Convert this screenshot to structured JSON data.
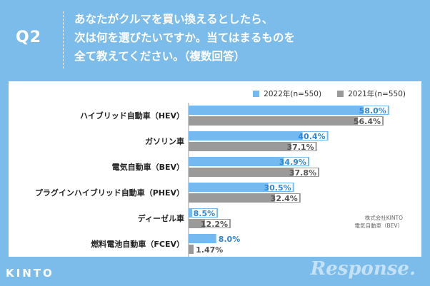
{
  "header": {
    "q_label": "Q2",
    "question_lines": [
      "あなたがクルマを買い換えるとしたら、",
      "次は何を選びたいですか。当てはまるものを",
      "全て教えてください。（複数回答）"
    ]
  },
  "colors": {
    "bg": "#7cbcea",
    "s2022": "#74baf0",
    "s2021": "#9a9a9a",
    "v2022": "#2f86d6",
    "v2021": "#555555"
  },
  "chart_data": {
    "type": "bar",
    "orientation": "horizontal",
    "categories": [
      "ハイブリッド自動車（HEV）",
      "ガソリン車",
      "電気自動車（BEV）",
      "プラグインハイブリッド自動車（PHEV）",
      "ディーゼル車",
      "燃料電池自動車（FCEV）"
    ],
    "series": [
      {
        "name": "2022年(n=550)",
        "values": [
          58.0,
          40.4,
          34.9,
          30.5,
          8.5,
          8.0
        ],
        "labels": [
          "58.0%",
          "40.4%",
          "34.9%",
          "30.5%",
          "8.5%",
          "8.0%"
        ]
      },
      {
        "name": "2021年(n=550)",
        "values": [
          56.4,
          37.1,
          37.8,
          32.4,
          12.2,
          1.47
        ],
        "labels": [
          "56.4%",
          "37.1%",
          "37.8%",
          "32.4%",
          "12.2%",
          "1.47%"
        ]
      }
    ],
    "xlim": [
      0,
      63
    ],
    "legend_position": "top-right"
  },
  "source": {
    "line1": "株式会社KINTO",
    "line2": "電気自動車（BEV）"
  },
  "footer": {
    "logo": "KINTO",
    "watermark": "Response."
  }
}
